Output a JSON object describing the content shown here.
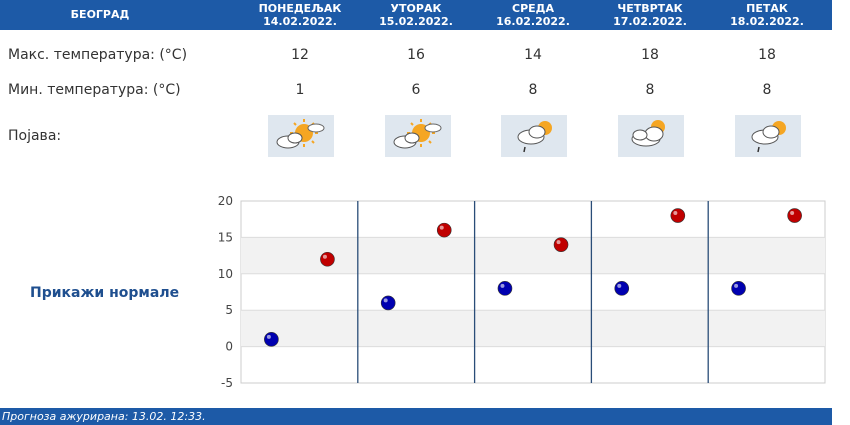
{
  "city": "БЕОГРАД",
  "days": [
    {
      "name": "ПОНЕДЕЉАК",
      "date": "14.02.2022.",
      "max": "12",
      "min": "1",
      "icon": "sun-cloud-icon"
    },
    {
      "name": "УТОРАК",
      "date": "15.02.2022.",
      "max": "16",
      "min": "6",
      "icon": "sun-cloud-icon"
    },
    {
      "name": "СРЕДА",
      "date": "16.02.2022.",
      "max": "14",
      "min": "8",
      "icon": "sun-cloud-rain-icon"
    },
    {
      "name": "ЧЕТВРТАК",
      "date": "17.02.2022.",
      "max": "18",
      "min": "8",
      "icon": "cloud-icon"
    },
    {
      "name": "ПЕТАК",
      "date": "18.02.2022.",
      "max": "18",
      "min": "8",
      "icon": "sun-cloud-rain-icon"
    }
  ],
  "labels": {
    "max_temp": "Макс. температура: (°C)",
    "min_temp": "Мин. температура: (°C)",
    "phenomenon": "Појава:"
  },
  "normals_link": "Прикажи нормале",
  "footer": "Прогноза ажурирана:  13.02. 12:33.",
  "colors": {
    "header": "#1d5aa7",
    "max_marker": "#c00000",
    "min_marker": "#0000b0"
  },
  "chart_data": {
    "type": "scatter",
    "categories": [
      "14.02.2022.",
      "15.02.2022.",
      "16.02.2022.",
      "17.02.2022.",
      "18.02.2022."
    ],
    "series": [
      {
        "values": [
          12,
          16,
          14,
          18,
          18
        ],
        "color": "#c00000"
      },
      {
        "values": [
          1,
          6,
          8,
          8,
          8
        ],
        "color": "#0000b0"
      }
    ],
    "ylim": [
      -5,
      20
    ],
    "yticks": [
      "20",
      "15",
      "10",
      "5",
      "0",
      "-5"
    ],
    "grid": true
  }
}
